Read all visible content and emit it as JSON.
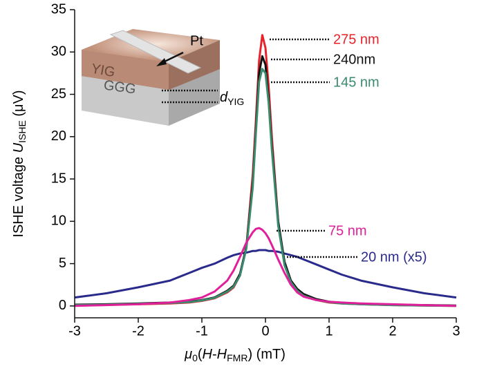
{
  "chart_data": {
    "type": "line",
    "xlabel": [
      "μ",
      "0",
      "(",
      "H",
      "-",
      "H",
      "FMR",
      ") (mT)"
    ],
    "ylabel": [
      "ISHE voltage ",
      "U",
      "ISHE",
      " (μV)"
    ],
    "x": [
      -3,
      -2.5,
      -2,
      -1.5,
      -1.2,
      -1,
      -0.8,
      -0.6,
      -0.5,
      -0.4,
      -0.3,
      -0.2,
      -0.15,
      -0.1,
      -0.05,
      0,
      0.05,
      0.1,
      0.2,
      0.3,
      0.4,
      0.5,
      0.6,
      0.8,
      1,
      1.2,
      1.5,
      2,
      2.5,
      3
    ],
    "series": [
      {
        "name": "275 nm",
        "color": "#e8222a",
        "values": [
          0.1,
          0.15,
          0.2,
          0.3,
          0.4,
          0.6,
          0.9,
          1.6,
          2.2,
          3.6,
          7.0,
          15.5,
          22,
          29,
          32,
          30.5,
          26,
          20,
          10,
          5,
          2.8,
          1.8,
          1.2,
          0.7,
          0.4,
          0.3,
          0.2,
          0.1,
          0.05,
          0
        ]
      },
      {
        "name": "240nm",
        "color": "#111111",
        "values": [
          0.15,
          0.2,
          0.3,
          0.4,
          0.5,
          0.7,
          1.0,
          1.8,
          2.4,
          3.8,
          7.0,
          14.5,
          21,
          27.5,
          29.5,
          28.5,
          24.5,
          19,
          10,
          5.2,
          3.0,
          2.0,
          1.4,
          0.8,
          0.5,
          0.35,
          0.25,
          0.15,
          0.1,
          0.05
        ]
      },
      {
        "name": "145 nm",
        "color": "#3a8a6e",
        "values": [
          0.1,
          0.15,
          0.25,
          0.35,
          0.45,
          0.65,
          0.95,
          1.7,
          2.3,
          3.6,
          6.8,
          14.0,
          20.5,
          26.5,
          28,
          27.5,
          24,
          18.5,
          9.5,
          4.8,
          2.8,
          1.8,
          1.2,
          0.7,
          0.45,
          0.3,
          0.2,
          0.1,
          0.05,
          0
        ]
      },
      {
        "name": "75 nm",
        "color": "#e0209a",
        "values": [
          0.0,
          0.1,
          0.2,
          0.4,
          0.7,
          1.0,
          1.7,
          3.0,
          4.2,
          5.8,
          7.5,
          8.7,
          9.1,
          9.2,
          9.0,
          8.6,
          8.0,
          7.2,
          5.5,
          3.9,
          2.5,
          1.6,
          1.1,
          0.7,
          0.5,
          0.4,
          0.3,
          0.2,
          0.1,
          0
        ]
      },
      {
        "name": "20 nm (x5)",
        "color": "#2a2a8c",
        "values": [
          1.0,
          1.5,
          2.2,
          3.0,
          3.9,
          4.5,
          5.0,
          5.7,
          6.0,
          6.2,
          6.3,
          6.5,
          6.5,
          6.6,
          6.6,
          6.6,
          6.5,
          6.5,
          6.4,
          6.2,
          6.0,
          5.8,
          5.5,
          4.9,
          4.3,
          3.7,
          3.0,
          2.2,
          1.5,
          1.0
        ]
      }
    ],
    "xlim": [
      -3,
      3
    ],
    "ylim": [
      -1.4,
      35
    ],
    "xticks": [
      -3,
      -2,
      -1,
      0,
      1,
      2,
      3
    ],
    "yticks": [
      0,
      5,
      10,
      15,
      20,
      25,
      30,
      35
    ],
    "inset": {
      "pt": "Pt",
      "yig": "YIG",
      "ggg": "GGG",
      "thickness": [
        "d",
        "YIG"
      ]
    }
  }
}
